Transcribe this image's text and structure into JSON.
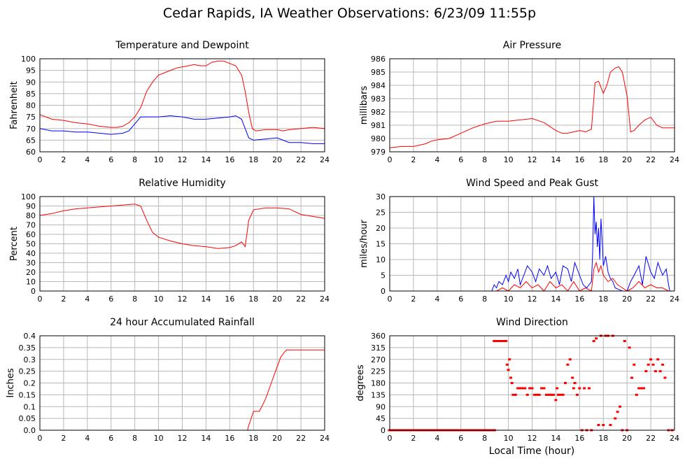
{
  "title": "Cedar Rapids, IA Weather Observations: 6/23/09 11:55p",
  "xlabel_bottom": "Local Time (hour)",
  "chart_data": [
    {
      "id": "temp",
      "type": "line",
      "title": "Temperature and Dewpoint",
      "ylabel": "Fahrenheit",
      "xlim": [
        0,
        24
      ],
      "ylim": [
        60,
        100
      ],
      "xticks": [
        0,
        2,
        4,
        6,
        8,
        10,
        12,
        14,
        16,
        18,
        20,
        22,
        24
      ],
      "yticks": [
        60,
        65,
        70,
        75,
        80,
        85,
        90,
        95,
        100
      ],
      "ytick_labels": [
        "60",
        "65",
        "70",
        "75",
        "80",
        "85",
        "90",
        "95",
        "100"
      ],
      "grid": true,
      "series": [
        {
          "color": "#ff0000",
          "x": [
            0,
            1,
            2,
            3,
            4,
            5,
            6,
            6.5,
            7,
            7.5,
            8,
            8.5,
            9,
            9.5,
            10,
            10.5,
            11,
            11.5,
            12,
            12.5,
            13,
            13.5,
            14,
            14.5,
            15,
            15.5,
            16,
            16.5,
            17,
            17.3,
            17.6,
            17.9,
            18.2,
            19,
            20,
            20.5,
            21,
            22,
            23,
            24
          ],
          "y": [
            76,
            74,
            73.5,
            72.5,
            72,
            71,
            70.5,
            70.5,
            71,
            72.5,
            75,
            79,
            86,
            90,
            93,
            94,
            95,
            96,
            96.5,
            97,
            97.5,
            97,
            97,
            98.5,
            99,
            99,
            98,
            97,
            93,
            86,
            77,
            70,
            69,
            69.5,
            69.5,
            69,
            69.5,
            70,
            70.5,
            70
          ]
        },
        {
          "color": "#0000ff",
          "x": [
            0,
            1,
            2,
            3,
            4,
            5,
            6,
            7,
            7.5,
            8,
            8.5,
            9,
            10,
            11,
            12,
            13,
            14,
            15,
            16,
            16.5,
            17,
            17.3,
            17.6,
            18,
            19,
            20,
            20.5,
            21,
            22,
            23,
            24
          ],
          "y": [
            70,
            69,
            69,
            68.5,
            68.5,
            68,
            67.5,
            68,
            69,
            72,
            75,
            75,
            75,
            75.5,
            75,
            74,
            74,
            74.5,
            75,
            75.5,
            74,
            70,
            66,
            65,
            65.5,
            66,
            65,
            64,
            64,
            63.5,
            63.5
          ]
        }
      ]
    },
    {
      "id": "pressure",
      "type": "line",
      "title": "Air Pressure",
      "ylabel": "millibars",
      "xlim": [
        0,
        24
      ],
      "ylim": [
        979,
        986
      ],
      "xticks": [
        0,
        2,
        4,
        6,
        8,
        10,
        12,
        14,
        16,
        18,
        20,
        22,
        24
      ],
      "yticks": [
        979,
        980,
        981,
        982,
        983,
        984,
        985,
        986
      ],
      "ytick_labels": [
        "979",
        "980",
        "981",
        "982",
        "983",
        "984",
        "985",
        "986"
      ],
      "grid": true,
      "series": [
        {
          "color": "#ff0000",
          "x": [
            0,
            1,
            2,
            2.5,
            3,
            3.5,
            4,
            5,
            6,
            7,
            8,
            9,
            10,
            11,
            12,
            13,
            14,
            14.5,
            15,
            16,
            16.5,
            17,
            17.3,
            17.6,
            18,
            18.3,
            18.6,
            19,
            19.3,
            19.6,
            20,
            20.3,
            20.6,
            21,
            21.5,
            22,
            22.5,
            23,
            24
          ],
          "y": [
            979.3,
            979.4,
            979.4,
            979.5,
            979.6,
            979.8,
            979.9,
            980,
            980.4,
            980.8,
            981.1,
            981.3,
            981.3,
            981.4,
            981.5,
            981.2,
            980.6,
            980.4,
            980.4,
            980.6,
            980.5,
            980.7,
            984.2,
            984.3,
            983.4,
            984.0,
            985.0,
            985.3,
            985.4,
            985.0,
            983.2,
            980.5,
            980.6,
            981.0,
            981.4,
            981.6,
            981.0,
            980.8,
            980.8
          ]
        }
      ]
    },
    {
      "id": "humidity",
      "type": "line",
      "title": "Relative Humidity",
      "ylabel": "Percent",
      "xlim": [
        0,
        24
      ],
      "ylim": [
        0,
        100
      ],
      "xticks": [
        0,
        2,
        4,
        6,
        8,
        10,
        12,
        14,
        16,
        18,
        20,
        22,
        24
      ],
      "yticks": [
        0,
        10,
        20,
        30,
        40,
        50,
        60,
        70,
        80,
        90,
        100
      ],
      "ytick_labels": [
        "0",
        "10",
        "20",
        "30",
        "40",
        "50",
        "60",
        "70",
        "80",
        "90",
        "100"
      ],
      "grid": true,
      "series": [
        {
          "color": "#ff0000",
          "x": [
            0,
            1,
            2,
            3,
            4,
            5,
            6,
            7,
            8,
            8.5,
            9,
            9.5,
            10,
            11,
            12,
            13,
            14,
            15,
            16,
            16.5,
            17,
            17.3,
            17.6,
            18,
            19,
            20,
            21,
            22,
            23,
            24
          ],
          "y": [
            80,
            82,
            85,
            87,
            88,
            89,
            90,
            91,
            92,
            90,
            75,
            62,
            57,
            53,
            50,
            48,
            47,
            45,
            46,
            48,
            52,
            47,
            75,
            86,
            88,
            88,
            87,
            81,
            79,
            77
          ]
        }
      ]
    },
    {
      "id": "wind",
      "type": "line",
      "title": "Wind Speed and Peak Gust",
      "ylabel": "miles/hour",
      "xlim": [
        0,
        24
      ],
      "ylim": [
        0,
        30
      ],
      "xticks": [
        0,
        2,
        4,
        6,
        8,
        10,
        12,
        14,
        16,
        18,
        20,
        22,
        24
      ],
      "yticks": [
        0,
        5,
        10,
        15,
        20,
        25,
        30
      ],
      "ytick_labels": [
        "0",
        "5",
        "10",
        "15",
        "20",
        "25",
        "30"
      ],
      "grid": true,
      "series": [
        {
          "color": "#0000ff",
          "x": [
            0,
            8.6,
            8.8,
            9,
            9.2,
            9.5,
            9.8,
            10,
            10.2,
            10.5,
            10.8,
            11,
            11.3,
            11.6,
            12,
            12.3,
            12.6,
            13,
            13.3,
            13.6,
            14,
            14.3,
            14.6,
            15,
            15.3,
            15.6,
            16,
            16.3,
            16.6,
            17,
            17.1,
            17.2,
            17.3,
            17.4,
            17.5,
            17.6,
            17.7,
            17.8,
            17.9,
            18,
            18.2,
            18.4,
            18.6,
            18.8,
            19,
            19.3,
            19.6,
            20,
            20.3,
            20.6,
            21,
            21.3,
            21.6,
            22,
            22.3,
            22.6,
            23,
            23.3,
            23.5,
            23.6
          ],
          "y": [
            0,
            0,
            2,
            1,
            3,
            2,
            5,
            3,
            6,
            4,
            7,
            2,
            5,
            8,
            6,
            3,
            7,
            5,
            8,
            4,
            6,
            2,
            8,
            7,
            3,
            9,
            5,
            2,
            1,
            3,
            12,
            30,
            18,
            22,
            14,
            20,
            10,
            23,
            16,
            8,
            11,
            6,
            4,
            3,
            1,
            0.5,
            0,
            0,
            3,
            5,
            8,
            2,
            11,
            6,
            4,
            9,
            5,
            7,
            2,
            0
          ]
        },
        {
          "color": "#ff0000",
          "x": [
            0,
            9,
            9.5,
            10,
            10.5,
            11,
            11.5,
            12,
            12.5,
            13,
            13.5,
            14,
            14.5,
            15,
            15.5,
            16,
            16.5,
            17,
            17.2,
            17.4,
            17.6,
            17.8,
            18,
            18.4,
            18.8,
            19.2,
            19.6,
            20,
            20.5,
            21,
            21.5,
            22,
            22.5,
            23,
            23.5
          ],
          "y": [
            0,
            0,
            1,
            0,
            2,
            1,
            3,
            1,
            2,
            0,
            3,
            1,
            2,
            0,
            3,
            0,
            1,
            0,
            7,
            9,
            6,
            8,
            5,
            3,
            4,
            2,
            1,
            0,
            1,
            3,
            1,
            2,
            1,
            1,
            0
          ]
        }
      ]
    },
    {
      "id": "rain",
      "type": "line",
      "title": "24 hour Accumulated Rainfall",
      "ylabel": "Inches",
      "xlim": [
        0,
        24
      ],
      "ylim": [
        0,
        0.4
      ],
      "xticks": [
        0,
        2,
        4,
        6,
        8,
        10,
        12,
        14,
        16,
        18,
        20,
        22,
        24
      ],
      "yticks": [
        0,
        0.05,
        0.1,
        0.15,
        0.2,
        0.25,
        0.3,
        0.35,
        0.4
      ],
      "ytick_labels": [
        "0.0",
        "0.05",
        "0.1",
        "0.15",
        "0.2",
        "0.25",
        "0.3",
        "0.35",
        "0.4"
      ],
      "grid": true,
      "series": [
        {
          "color": "#ff0000",
          "x": [
            0,
            17.5,
            17.6,
            17.8,
            18,
            18.5,
            19,
            19.5,
            20,
            20.3,
            20.6,
            20.8,
            21,
            22,
            24
          ],
          "y": [
            0,
            0,
            0.02,
            0.05,
            0.08,
            0.08,
            0.13,
            0.2,
            0.27,
            0.31,
            0.33,
            0.34,
            0.34,
            0.34,
            0.34
          ]
        }
      ]
    },
    {
      "id": "direction",
      "type": "scatter",
      "title": "Wind Direction",
      "ylabel": "degrees",
      "xlim": [
        0,
        24
      ],
      "ylim": [
        0,
        360
      ],
      "xticks": [
        0,
        2,
        4,
        6,
        8,
        10,
        12,
        14,
        16,
        18,
        20,
        22,
        24
      ],
      "yticks": [
        0,
        45,
        90,
        135,
        180,
        225,
        270,
        315,
        360
      ],
      "ytick_labels": [
        "0",
        "45",
        "90",
        "135",
        "180",
        "225",
        "270",
        "315",
        "360"
      ],
      "grid": true,
      "series": [
        {
          "color": "#ff0000",
          "x": [
            0.2,
            0.6,
            1,
            1.4,
            1.8,
            2.2,
            2.6,
            3,
            3.4,
            3.8,
            4.2,
            4.6,
            5,
            5.4,
            5.8,
            6.2,
            6.6,
            7,
            7.4,
            7.8,
            8.2,
            8.6,
            8.8,
            9,
            9.2,
            9.4,
            9.6,
            9.8,
            9.9,
            10,
            10.1,
            10.2,
            10.3,
            10.4,
            10.6,
            10.8,
            11,
            11.2,
            11.4,
            11.6,
            11.8,
            12,
            12.2,
            12.4,
            12.6,
            12.8,
            13,
            13.2,
            13.4,
            13.6,
            13.8,
            14,
            14.1,
            14.2,
            14.4,
            14.6,
            14.8,
            15,
            15.2,
            15.4,
            15.5,
            15.6,
            15.8,
            16,
            16.2,
            16.4,
            16.6,
            16.8,
            17,
            17.2,
            17.4,
            17.6,
            17.8,
            18,
            18.2,
            18.4,
            18.6,
            18.8,
            19,
            19.2,
            19.4,
            19.6,
            19.8,
            20,
            20.2,
            20.4,
            20.6,
            20.8,
            21,
            21.2,
            21.4,
            21.6,
            21.8,
            22,
            22.2,
            22.4,
            22.6,
            22.8,
            23,
            23.2,
            23.5,
            23.8
          ],
          "y": [
            0,
            0,
            0,
            0,
            0,
            0,
            0,
            0,
            0,
            0,
            0,
            0,
            0,
            0,
            0,
            0,
            0,
            0,
            0,
            0,
            0,
            0,
            340,
            340,
            340,
            340,
            340,
            340,
            250,
            230,
            270,
            200,
            180,
            135,
            135,
            160,
            160,
            160,
            160,
            135,
            160,
            160,
            135,
            135,
            135,
            160,
            160,
            135,
            135,
            135,
            135,
            115,
            160,
            135,
            135,
            135,
            180,
            250,
            270,
            200,
            160,
            180,
            135,
            160,
            0,
            160,
            0,
            160,
            0,
            340,
            350,
            20,
            360,
            20,
            360,
            360,
            20,
            360,
            45,
            70,
            90,
            0,
            340,
            0,
            315,
            200,
            250,
            135,
            160,
            160,
            160,
            225,
            250,
            270,
            250,
            225,
            270,
            225,
            250,
            200,
            0,
            0
          ]
        }
      ]
    }
  ]
}
